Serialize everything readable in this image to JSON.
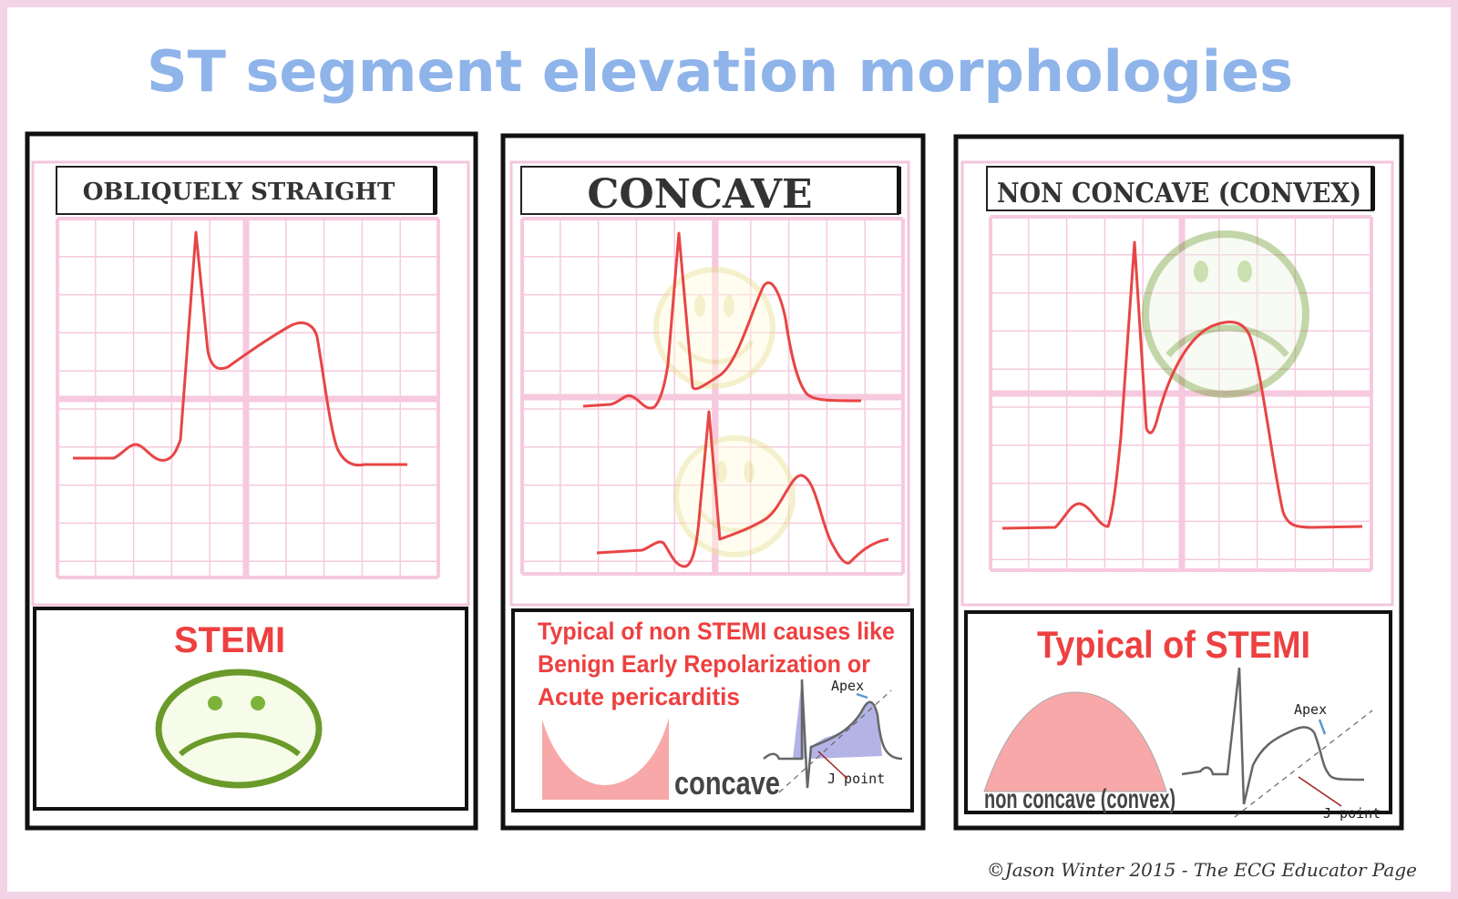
{
  "title": "ST segment elevation morphologies",
  "colors": {
    "title": "#8fb4ea",
    "trace": "#e84545",
    "grid": "#f6c9de",
    "border": "#111111",
    "frame": "#f3d3e6",
    "shape_fill": "#f8a8a8",
    "area_fill": "#b3b3e6"
  },
  "panels": [
    {
      "header": "OBLIQUELY STRAIGHT",
      "caption": "STEMI",
      "icon": "sad-face-icon"
    },
    {
      "header": "CONCAVE",
      "caption_lines": [
        "Typical of non STEMI causes like",
        "Benign Early Repolarization or",
        "Acute pericarditis"
      ],
      "shape_label": "concave",
      "apex_label": "Apex",
      "jpoint_label": "J point",
      "icon": "smiley-face-icon"
    },
    {
      "header": "NON CONCAVE (CONVEX)",
      "caption": "Typical of  STEMI",
      "shape_label": "non concave (convex)",
      "apex_label": "Apex",
      "jpoint_label": "J point",
      "icon": "sad-face-icon"
    }
  ],
  "credit": "©Jason Winter 2015 - The ECG Educator Page"
}
